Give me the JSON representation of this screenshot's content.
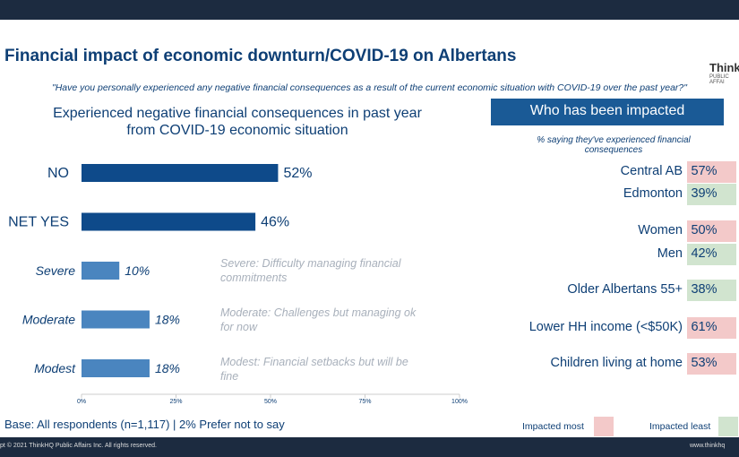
{
  "header": {
    "title": "Financial impact of economic downturn/COVID-19 on Albertans",
    "question": "\"Have you personally experienced any negative financial consequences as a result of the current economic situation with COVID-19 over the past year?\"",
    "logo": "ThinkH",
    "logo_sub": "PUBLIC AFFAI"
  },
  "chart_data": {
    "type": "hbar",
    "title": "Experienced negative financial consequences in past year from COVID-19 economic situation",
    "categories": [
      "NO",
      "NET YES",
      "Severe",
      "Moderate",
      "Modest"
    ],
    "values": [
      52,
      46,
      10,
      18,
      18
    ],
    "value_labels": [
      "52%",
      "46%",
      "10%",
      "18%",
      "18%"
    ],
    "colors": [
      "#0e4a8a",
      "#0e4a8a",
      "#4a85bf",
      "#4a85bf",
      "#4a85bf"
    ],
    "xlim": [
      0,
      100
    ],
    "xticks": [
      {
        "value": 0,
        "label": "0%"
      },
      {
        "value": 25,
        "label": "25%"
      },
      {
        "value": 50,
        "label": "50%"
      },
      {
        "value": 75,
        "label": "75%"
      },
      {
        "value": 100,
        "label": "100%"
      }
    ],
    "annotations": [
      "Severe: Difficulty managing financial commitments",
      "Moderate: Challenges but managing ok for now",
      "Modest: Financial setbacks but will be fine"
    ]
  },
  "base": "Base: All respondents (n=1,117) | 2% Prefer not to say",
  "panel": {
    "title": "Who has been impacted",
    "subtitle": "% saying they've experienced financial consequences",
    "rows": [
      {
        "label": "Central AB",
        "value": "57%",
        "color": "#f3c9c9"
      },
      {
        "label": "Edmonton",
        "value": "39%",
        "color": "#d1e4cf"
      },
      {
        "label": "Women",
        "value": "50%",
        "color": "#f3c9c9"
      },
      {
        "label": "Men",
        "value": "42%",
        "color": "#d1e4cf"
      },
      {
        "label": "Older Albertans 55+",
        "value": "38%",
        "color": "#d1e4cf"
      },
      {
        "label": "Lower HH income (<$50K)",
        "value": "61%",
        "color": "#f3c9c9"
      },
      {
        "label": "Children living at home",
        "value": "53%",
        "color": "#f3c9c9"
      }
    ],
    "legend": [
      {
        "label": "Impacted most",
        "color": "#f3c9c9"
      },
      {
        "label": "Impacted least",
        "color": "#d1e4cf"
      }
    ]
  },
  "footer": {
    "copyright": "pt © 2021 ThinkHQ Public Affairs Inc. All rights reserved.",
    "url": "www.thinkhq"
  }
}
